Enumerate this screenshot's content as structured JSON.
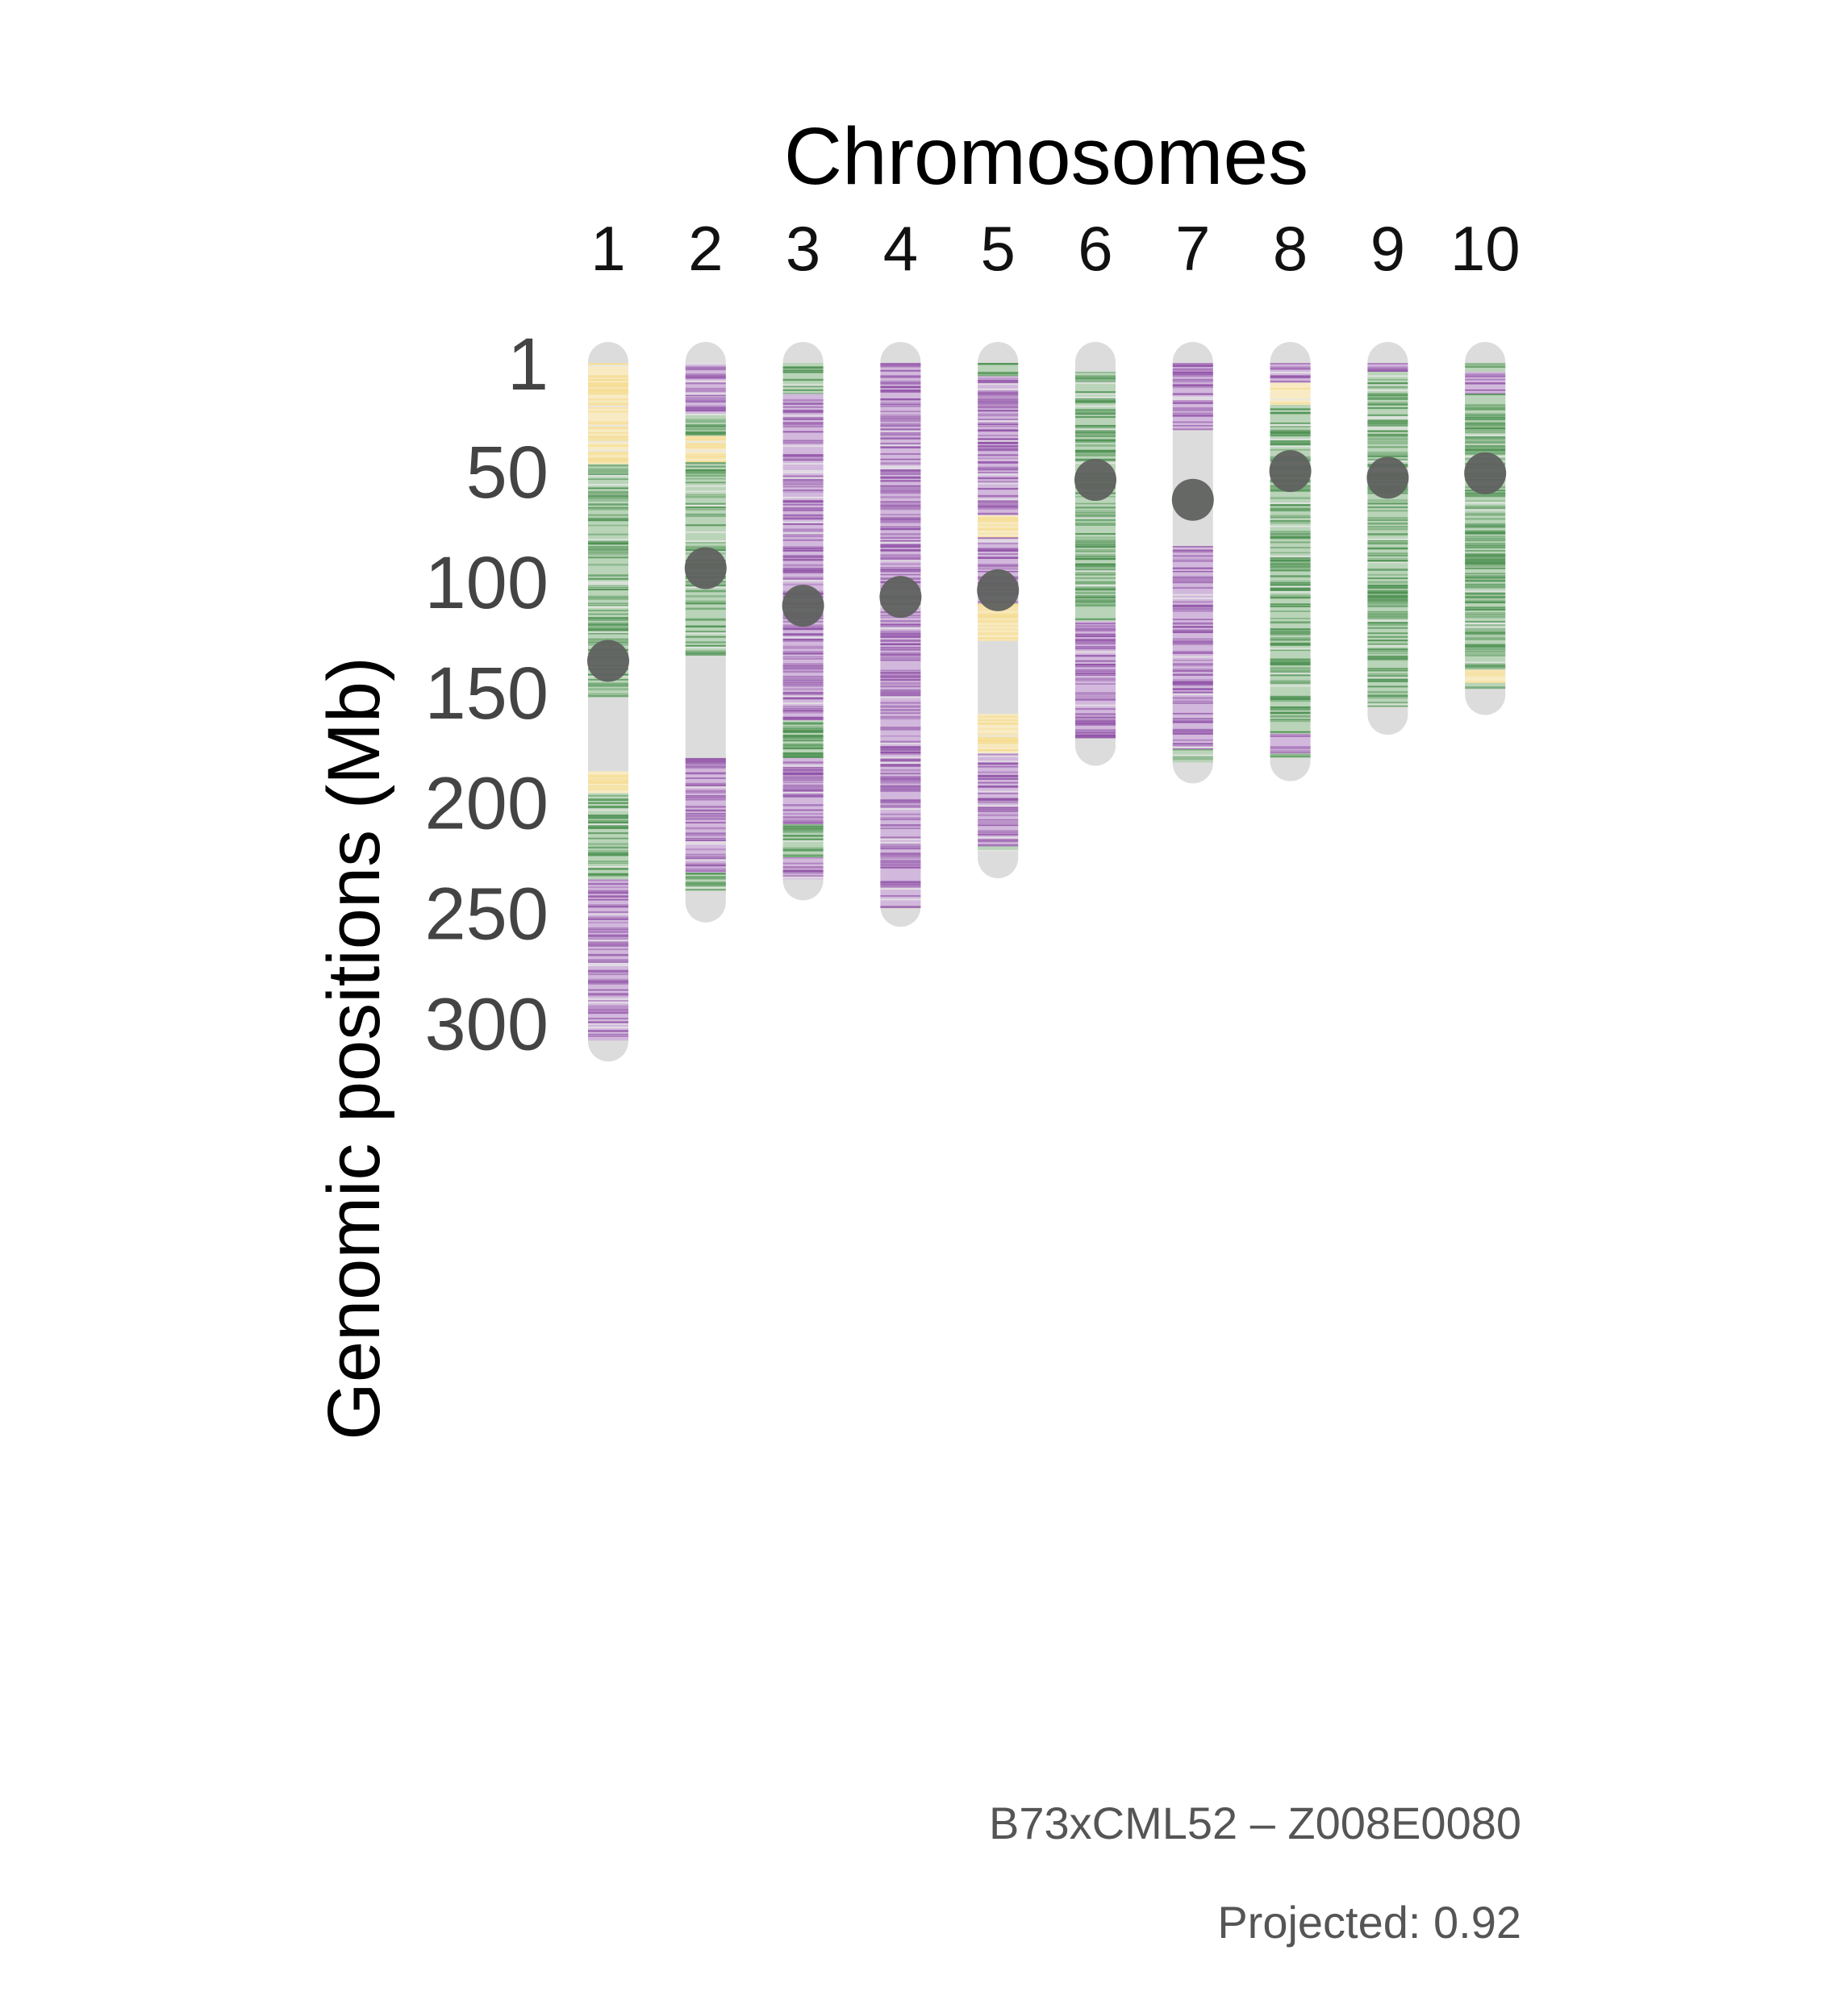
{
  "chart_data": {
    "type": "heatmap",
    "title": "Chromosomes",
    "xlabel": "",
    "ylabel": "Genomic positions (Mb)",
    "ylim": [
      1,
      308
    ],
    "yticks": [
      "1",
      "50",
      "100",
      "150",
      "200",
      "250",
      "300"
    ],
    "colors": {
      "background": "#dcdcdc",
      "green": "#4e9152",
      "purple": "#9255a8",
      "yellow": "#f5dc92",
      "centromere": "#5f615f"
    },
    "chromosomes": [
      {
        "name": "1",
        "length": 308,
        "centromere": 136,
        "segments": [
          {
            "start": 1,
            "end": 47,
            "state": "yellow"
          },
          {
            "start": 47,
            "end": 152,
            "state": "green"
          },
          {
            "start": 152,
            "end": 186,
            "state": "none"
          },
          {
            "start": 186,
            "end": 196,
            "state": "yellow"
          },
          {
            "start": 196,
            "end": 235,
            "state": "green"
          },
          {
            "start": 235,
            "end": 308,
            "state": "purple"
          }
        ]
      },
      {
        "name": "2",
        "length": 245,
        "centromere": 94,
        "segments": [
          {
            "start": 1,
            "end": 24,
            "state": "purple"
          },
          {
            "start": 24,
            "end": 34,
            "state": "green"
          },
          {
            "start": 34,
            "end": 46,
            "state": "yellow"
          },
          {
            "start": 46,
            "end": 133,
            "state": "green"
          },
          {
            "start": 133,
            "end": 180,
            "state": "none"
          },
          {
            "start": 180,
            "end": 232,
            "state": "purple"
          },
          {
            "start": 232,
            "end": 240,
            "state": "green"
          }
        ]
      },
      {
        "name": "3",
        "length": 235,
        "centromere": 111,
        "segments": [
          {
            "start": 1,
            "end": 15,
            "state": "green"
          },
          {
            "start": 15,
            "end": 163,
            "state": "purple"
          },
          {
            "start": 163,
            "end": 180,
            "state": "green"
          },
          {
            "start": 180,
            "end": 210,
            "state": "purple"
          },
          {
            "start": 210,
            "end": 225,
            "state": "green"
          },
          {
            "start": 225,
            "end": 235,
            "state": "purple"
          }
        ]
      },
      {
        "name": "4",
        "length": 247,
        "centromere": 107,
        "segments": [
          {
            "start": 1,
            "end": 247,
            "state": "purple"
          }
        ]
      },
      {
        "name": "5",
        "length": 225,
        "centromere": 104,
        "segments": [
          {
            "start": 1,
            "end": 7,
            "state": "green"
          },
          {
            "start": 7,
            "end": 70,
            "state": "purple"
          },
          {
            "start": 70,
            "end": 80,
            "state": "yellow"
          },
          {
            "start": 80,
            "end": 110,
            "state": "purple"
          },
          {
            "start": 110,
            "end": 127,
            "state": "yellow"
          },
          {
            "start": 127,
            "end": 160,
            "state": "none"
          },
          {
            "start": 160,
            "end": 178,
            "state": "yellow"
          },
          {
            "start": 178,
            "end": 220,
            "state": "purple"
          },
          {
            "start": 220,
            "end": 222,
            "state": "green"
          }
        ]
      },
      {
        "name": "6",
        "length": 174,
        "centromere": 54,
        "segments": [
          {
            "start": 1,
            "end": 5,
            "state": "none"
          },
          {
            "start": 5,
            "end": 118,
            "state": "green"
          },
          {
            "start": 118,
            "end": 171,
            "state": "purple"
          }
        ]
      },
      {
        "name": "7",
        "length": 182,
        "centromere": 63,
        "segments": [
          {
            "start": 1,
            "end": 31,
            "state": "purple"
          },
          {
            "start": 31,
            "end": 84,
            "state": "none"
          },
          {
            "start": 84,
            "end": 176,
            "state": "purple"
          },
          {
            "start": 176,
            "end": 182,
            "state": "green"
          }
        ]
      },
      {
        "name": "8",
        "length": 181,
        "centromere": 50,
        "segments": [
          {
            "start": 1,
            "end": 10,
            "state": "purple"
          },
          {
            "start": 10,
            "end": 20,
            "state": "yellow"
          },
          {
            "start": 20,
            "end": 169,
            "state": "green"
          },
          {
            "start": 169,
            "end": 178,
            "state": "purple"
          },
          {
            "start": 178,
            "end": 180,
            "state": "green"
          }
        ]
      },
      {
        "name": "9",
        "length": 160,
        "centromere": 53,
        "segments": [
          {
            "start": 1,
            "end": 5,
            "state": "purple"
          },
          {
            "start": 5,
            "end": 157,
            "state": "green"
          }
        ]
      },
      {
        "name": "10",
        "length": 151,
        "centromere": 51,
        "segments": [
          {
            "start": 1,
            "end": 5,
            "state": "green"
          },
          {
            "start": 5,
            "end": 15,
            "state": "purple"
          },
          {
            "start": 15,
            "end": 140,
            "state": "green"
          },
          {
            "start": 140,
            "end": 146,
            "state": "yellow"
          },
          {
            "start": 146,
            "end": 148,
            "state": "green"
          }
        ]
      }
    ]
  },
  "caption": {
    "line1": "B73xCML52 – Z008E0080",
    "line2": "Projected: 0.92"
  }
}
